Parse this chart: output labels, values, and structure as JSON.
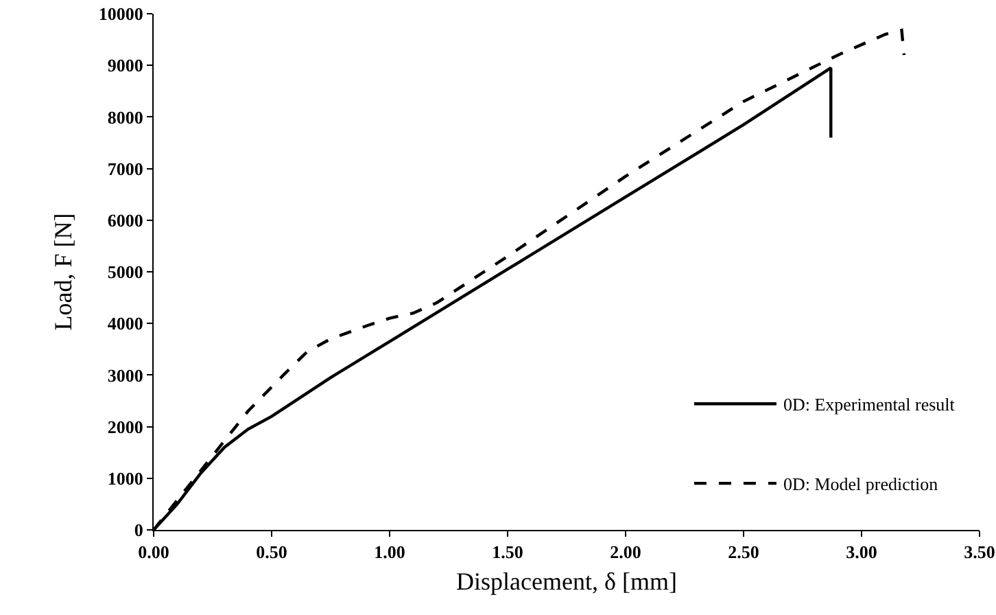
{
  "chart_data": {
    "type": "line",
    "xlabel": "Displacement, δ [mm]",
    "ylabel": "Load, F [N]",
    "xlim": [
      0,
      3.5
    ],
    "xticks": [
      {
        "value": 0,
        "label": "0.00"
      },
      {
        "value": 0.5,
        "label": "0.50"
      },
      {
        "value": 1,
        "label": "1.00"
      },
      {
        "value": 1.5,
        "label": "1.50"
      },
      {
        "value": 2,
        "label": "2.00"
      },
      {
        "value": 2.5,
        "label": "2.50"
      },
      {
        "value": 3,
        "label": "3.00"
      },
      {
        "value": 3.5,
        "label": "3.50"
      }
    ],
    "ylim": [
      0,
      10000
    ],
    "yticks": [
      0,
      1000,
      2000,
      3000,
      4000,
      5000,
      6000,
      7000,
      8000,
      9000,
      10000
    ],
    "grid": false,
    "legend": "bottom right",
    "marker": "none",
    "series": [
      {
        "name": "0D: Experimental result",
        "color": "#000000",
        "line_style": "solid",
        "x": [
          0,
          0.1,
          0.2,
          0.3,
          0.4,
          0.5,
          0.75,
          1.0,
          1.5,
          2.0,
          2.5,
          2.87,
          2.87
        ],
        "values": [
          0,
          500,
          1100,
          1600,
          1950,
          2200,
          2950,
          3650,
          5050,
          6450,
          7850,
          8950,
          7600
        ]
      },
      {
        "name": "0D: Model prediction",
        "color": "#000000",
        "line_style": "dashed",
        "x": [
          0,
          0.2,
          0.4,
          0.55,
          0.65,
          0.75,
          0.9,
          1.0,
          1.1,
          1.2,
          1.4,
          1.5,
          2.0,
          2.5,
          2.9,
          3.1,
          3.17,
          3.18
        ],
        "values": [
          0,
          1150,
          2300,
          3000,
          3450,
          3700,
          3950,
          4100,
          4200,
          4400,
          5000,
          5300,
          6850,
          8300,
          9200,
          9600,
          9680,
          9200
        ]
      }
    ]
  }
}
